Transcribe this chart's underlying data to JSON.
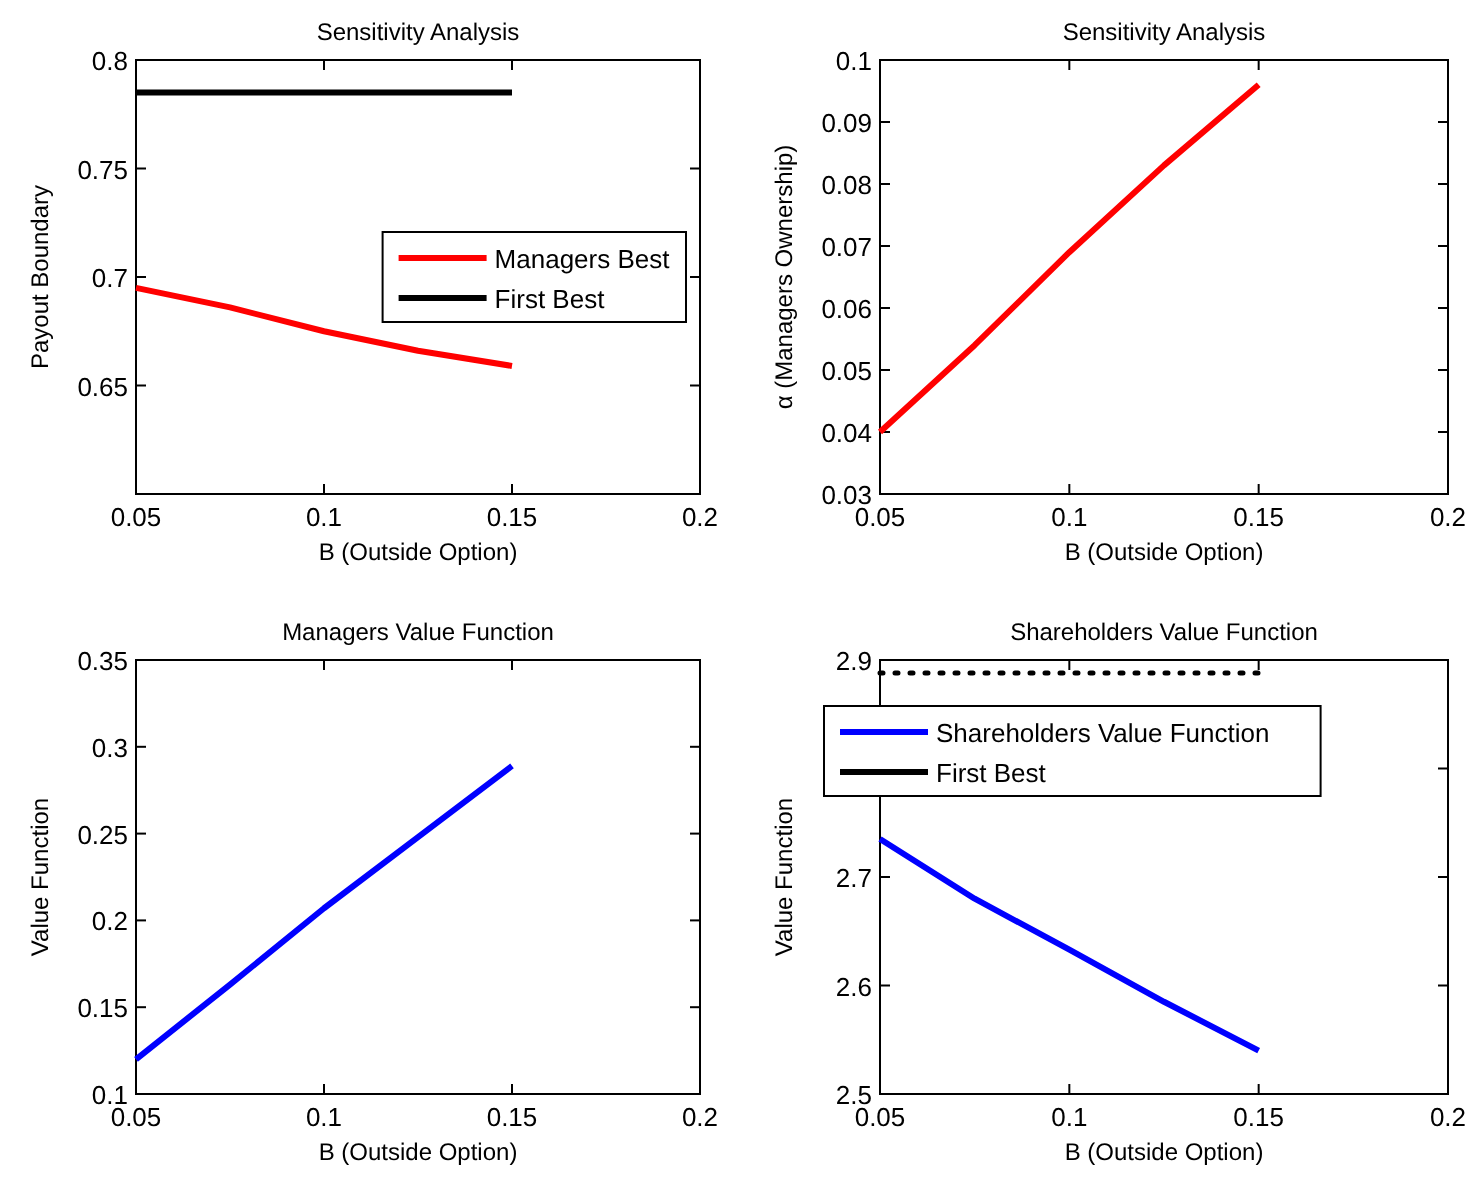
{
  "chart_data": [
    {
      "type": "line",
      "title": "Sensitivity Analysis",
      "xlabel": "B (Outside Option)",
      "ylabel": "Payout Boundary",
      "x": [
        0.05,
        0.075,
        0.1,
        0.125,
        0.15
      ],
      "xlim": [
        0.05,
        0.2
      ],
      "xticks": [
        0.05,
        0.1,
        0.15,
        0.2
      ],
      "ylim": [
        0.6,
        0.8
      ],
      "yticks": [
        0.65,
        0.7,
        0.75,
        0.8
      ],
      "legend": "right",
      "grid": false,
      "marker": "none",
      "series": [
        {
          "name": "Managers Best",
          "color": "#ff0000",
          "values": [
            0.695,
            0.686,
            0.675,
            0.666,
            0.659
          ]
        },
        {
          "name": "First Best",
          "color": "#000000",
          "values": [
            0.785,
            0.785,
            0.785,
            0.785,
            0.785
          ]
        }
      ]
    },
    {
      "type": "line",
      "title": "Sensitivity Analysis",
      "xlabel": "B (Outside Option)",
      "ylabel": "α (Managers Ownership)",
      "x": [
        0.05,
        0.075,
        0.1,
        0.125,
        0.15
      ],
      "xlim": [
        0.05,
        0.2
      ],
      "xticks": [
        0.05,
        0.1,
        0.15,
        0.2
      ],
      "ylim": [
        0.03,
        0.1
      ],
      "yticks": [
        0.03,
        0.04,
        0.05,
        0.06,
        0.07,
        0.08,
        0.09,
        0.1
      ],
      "legend": false,
      "grid": false,
      "marker": "none",
      "series": [
        {
          "color": "#ff0000",
          "values": [
            0.04,
            0.054,
            0.069,
            0.083,
            0.096
          ]
        }
      ]
    },
    {
      "type": "line",
      "title": "Managers Value Function",
      "xlabel": "B (Outside Option)",
      "ylabel": "Value Function",
      "x": [
        0.05,
        0.075,
        0.1,
        0.125,
        0.15
      ],
      "xlim": [
        0.05,
        0.2
      ],
      "xticks": [
        0.05,
        0.1,
        0.15,
        0.2
      ],
      "ylim": [
        0.1,
        0.35
      ],
      "yticks": [
        0.1,
        0.15,
        0.2,
        0.25,
        0.3,
        0.35
      ],
      "legend": false,
      "grid": false,
      "marker": "none",
      "series": [
        {
          "color": "#0000ff",
          "values": [
            0.12,
            0.163,
            0.207,
            0.248,
            0.289
          ]
        }
      ]
    },
    {
      "type": "line",
      "title": "Shareholders Value Function",
      "xlabel": "B (Outside Option)",
      "ylabel": "Value Function",
      "x": [
        0.05,
        0.075,
        0.1,
        0.125,
        0.15
      ],
      "xlim": [
        0.05,
        0.2
      ],
      "xticks": [
        0.05,
        0.1,
        0.15,
        0.2
      ],
      "ylim": [
        2.5,
        2.9
      ],
      "yticks": [
        2.5,
        2.6,
        2.7,
        {
          "value": 2.8,
          "label": null
        },
        2.9
      ],
      "legend": "top left",
      "grid": false,
      "marker": "none",
      "series": [
        {
          "name": "Shareholders Value Function",
          "color": "#0000ff",
          "values": [
            2.735,
            2.68,
            2.633,
            2.585,
            2.54
          ]
        },
        {
          "name": "First Best",
          "color": "#000000",
          "line_style": "dotted",
          "values": [
            2.888,
            2.888,
            2.888,
            2.888,
            2.888
          ]
        }
      ]
    }
  ]
}
